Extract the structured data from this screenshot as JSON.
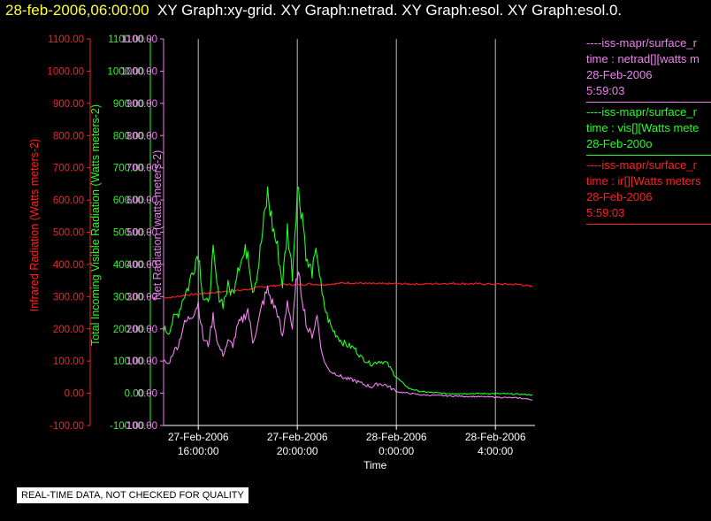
{
  "header": {
    "timestamp": "28-feb-2006,06:00:00",
    "graph_list": "XY Graph:xy-grid.  XY Graph:netrad.  XY Graph:esol.  XY Graph:esol.0."
  },
  "colors": {
    "background": "#000000",
    "timestamp": "#ffff33",
    "ir": "#ff2020",
    "vis": "#22ff22",
    "net": "#ee82ee",
    "grid": "#ffffff"
  },
  "legend": [
    {
      "color": "#ee82ee",
      "lines": [
        "----iss-mapr/surface_r",
        "time : netrad[][watts m",
        "28-Feb-2006",
        "5:59:03"
      ]
    },
    {
      "color": "#22ff22",
      "lines": [
        "----iss-mapr/surface_r",
        "time : vis[][Watts mete",
        "28-Feb-200o"
      ]
    },
    {
      "color": "#ff2020",
      "lines": [
        "----iss-mapr/surface_r",
        "time : ir[][Watts meters",
        "28-Feb-2006",
        "5:59:03"
      ]
    }
  ],
  "qc_note": "REAL-TIME DATA, NOT CHECKED FOR QUALITY",
  "chart_data": {
    "type": "line",
    "title": "",
    "xlabel": "Time",
    "x_ticks": [
      {
        "label1": "27-Feb-2006",
        "label2": "16:00:00",
        "hour": 16
      },
      {
        "label1": "27-Feb-2006",
        "label2": "20:00:00",
        "hour": 20
      },
      {
        "label1": "28-Feb-2006",
        "label2": "0:00:00",
        "hour": 24
      },
      {
        "label1": "28-Feb-2006",
        "label2": "4:00:00",
        "hour": 28
      }
    ],
    "xlim_hours": [
      14.6,
      29.6
    ],
    "y_axes": [
      {
        "id": "ir",
        "label": "Infrared Radiation (Watts meters-2)",
        "color": "#ff2020",
        "ylim": [
          -100,
          1100
        ]
      },
      {
        "id": "vis",
        "label": "Total Incoming Visible Radiation (Watts meters-2)",
        "color": "#22ff22",
        "ylim": [
          -100,
          1100
        ]
      },
      {
        "id": "net",
        "label": "Net Radiation (watts meters-2)",
        "color": "#ee82ee",
        "ylim": [
          -100,
          1100
        ]
      }
    ],
    "y_ticks": [
      "-100.00",
      "0.00",
      "100.00",
      "200.00",
      "300.00",
      "400.00",
      "500.00",
      "600.00",
      "700.00",
      "800.00",
      "900.00",
      "1000.00",
      "1100.00"
    ],
    "grid": "vertical",
    "series": [
      {
        "name": "ir",
        "axis": "ir",
        "color": "#ff2020",
        "x": [
          14.6,
          15.0,
          15.5,
          16.0,
          16.5,
          17.0,
          17.5,
          18.0,
          18.5,
          19.0,
          19.5,
          20.0,
          20.5,
          21.0,
          21.5,
          22.0,
          22.5,
          23.0,
          24.0,
          25.0,
          26.0,
          27.0,
          28.0,
          29.0,
          29.5
        ],
        "y": [
          297,
          298,
          305,
          308,
          312,
          315,
          318,
          322,
          330,
          333,
          338,
          336,
          340,
          337,
          340,
          343,
          342,
          340,
          340,
          339,
          341,
          340,
          339,
          338,
          330
        ]
      },
      {
        "name": "vis",
        "axis": "vis",
        "color": "#22ff22",
        "x": [
          14.6,
          14.8,
          15.0,
          15.2,
          15.4,
          15.6,
          15.8,
          16.0,
          16.2,
          16.4,
          16.6,
          16.8,
          17.0,
          17.2,
          17.4,
          17.6,
          17.8,
          18.0,
          18.2,
          18.4,
          18.6,
          18.8,
          19.0,
          19.2,
          19.4,
          19.6,
          19.8,
          20.0,
          20.2,
          20.4,
          20.6,
          20.8,
          21.0,
          21.2,
          21.4,
          21.6,
          21.8,
          22.0,
          22.3,
          22.6,
          23.0,
          23.3,
          23.6,
          24.0,
          24.5,
          25.0,
          26.0,
          27.0,
          28.0,
          29.0,
          29.5
        ],
        "y": [
          200,
          190,
          230,
          250,
          300,
          330,
          390,
          440,
          300,
          270,
          430,
          310,
          280,
          330,
          310,
          400,
          420,
          450,
          320,
          380,
          500,
          620,
          520,
          450,
          340,
          510,
          370,
          640,
          560,
          400,
          380,
          440,
          300,
          240,
          200,
          180,
          160,
          150,
          140,
          110,
          90,
          100,
          95,
          50,
          15,
          5,
          -1,
          -1,
          -1,
          -3,
          -5
        ]
      },
      {
        "name": "net",
        "axis": "net",
        "color": "#ee82ee",
        "x": [
          14.6,
          14.8,
          15.0,
          15.2,
          15.4,
          15.6,
          15.8,
          16.0,
          16.2,
          16.4,
          16.6,
          16.8,
          17.0,
          17.2,
          17.4,
          17.6,
          17.8,
          18.0,
          18.2,
          18.4,
          18.6,
          18.8,
          19.0,
          19.2,
          19.4,
          19.6,
          19.8,
          20.0,
          20.2,
          20.4,
          20.6,
          20.8,
          21.0,
          21.2,
          21.4,
          21.6,
          21.8,
          22.0,
          22.3,
          22.6,
          23.0,
          23.3,
          23.6,
          24.0,
          24.5,
          25.0,
          26.0,
          27.0,
          28.0,
          29.0,
          29.5
        ],
        "y": [
          100,
          90,
          130,
          150,
          210,
          230,
          250,
          280,
          170,
          150,
          240,
          150,
          120,
          160,
          150,
          210,
          230,
          260,
          160,
          210,
          280,
          320,
          280,
          250,
          170,
          290,
          200,
          380,
          300,
          200,
          180,
          240,
          120,
          80,
          65,
          60,
          50,
          45,
          40,
          30,
          20,
          30,
          25,
          5,
          0,
          -5,
          -8,
          -10,
          -12,
          -15,
          -20
        ]
      }
    ]
  }
}
